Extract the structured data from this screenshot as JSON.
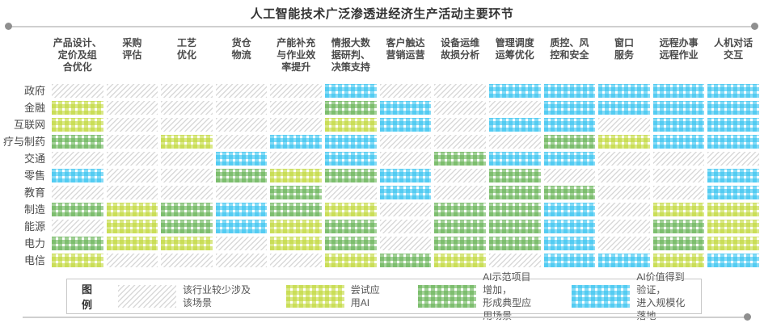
{
  "chart_data": {
    "type": "heatmap",
    "title": "人工智能技术广泛渗透进经济生产活动主要环节",
    "legend_title": "图例",
    "columns": [
      "产品设计、\n定价及组\n合优化",
      "采购\n评估",
      "工艺\n优化",
      "货仓\n物流",
      "产能补充\n与作业效\n率提升",
      "情报大数\n据研判、\n决策支持",
      "客户触达\n营销运营",
      "设备运维\n故损分析",
      "管理调度\n运筹优化",
      "质控、风\n控和安全",
      "窗口\n服务",
      "远程办事\n远程作业",
      "人机对话\n交互"
    ],
    "rows": [
      "政府",
      "金融",
      "互联网",
      "疗与制药",
      "交通",
      "零售",
      "教育",
      "制造",
      "能源",
      "电力",
      "电信"
    ],
    "legend": [
      {
        "key": "none",
        "label": "该行业较少涉及该场景",
        "color": "#d9d9d9",
        "pattern": "hatch"
      },
      {
        "key": "trial",
        "label": "尝试应用AI",
        "color": "#bfd733",
        "pattern": "gingham"
      },
      {
        "key": "demo",
        "label": "AI示范项目增加，\n形成典型应用场景",
        "color": "#61b04f",
        "pattern": "gingham"
      },
      {
        "key": "scale",
        "label": "AI价值得到验证，\n进入规模化落地",
        "color": "#2ec1f0",
        "pattern": "gingham"
      }
    ],
    "matrix": [
      [
        0,
        0,
        0,
        0,
        0,
        3,
        0,
        0,
        3,
        3,
        3,
        3,
        3
      ],
      [
        1,
        0,
        0,
        0,
        0,
        2,
        3,
        0,
        0,
        3,
        3,
        3,
        3
      ],
      [
        1,
        0,
        0,
        0,
        0,
        1,
        3,
        0,
        3,
        3,
        0,
        3,
        3
      ],
      [
        2,
        0,
        1,
        0,
        3,
        3,
        0,
        0,
        0,
        2,
        1,
        3,
        3
      ],
      [
        0,
        0,
        0,
        3,
        0,
        3,
        0,
        2,
        3,
        3,
        0,
        0,
        0
      ],
      [
        3,
        0,
        0,
        2,
        1,
        2,
        3,
        0,
        2,
        0,
        0,
        0,
        3
      ],
      [
        0,
        0,
        0,
        0,
        2,
        0,
        3,
        0,
        2,
        2,
        0,
        0,
        3
      ],
      [
        2,
        1,
        2,
        3,
        2,
        1,
        0,
        2,
        2,
        3,
        0,
        1,
        1
      ],
      [
        0,
        1,
        2,
        3,
        1,
        2,
        0,
        2,
        2,
        3,
        0,
        2,
        1
      ],
      [
        2,
        1,
        1,
        0,
        1,
        2,
        0,
        2,
        2,
        3,
        0,
        2,
        1
      ],
      [
        1,
        0,
        0,
        0,
        0,
        1,
        2,
        1,
        0,
        3,
        3,
        1,
        3
      ]
    ]
  }
}
